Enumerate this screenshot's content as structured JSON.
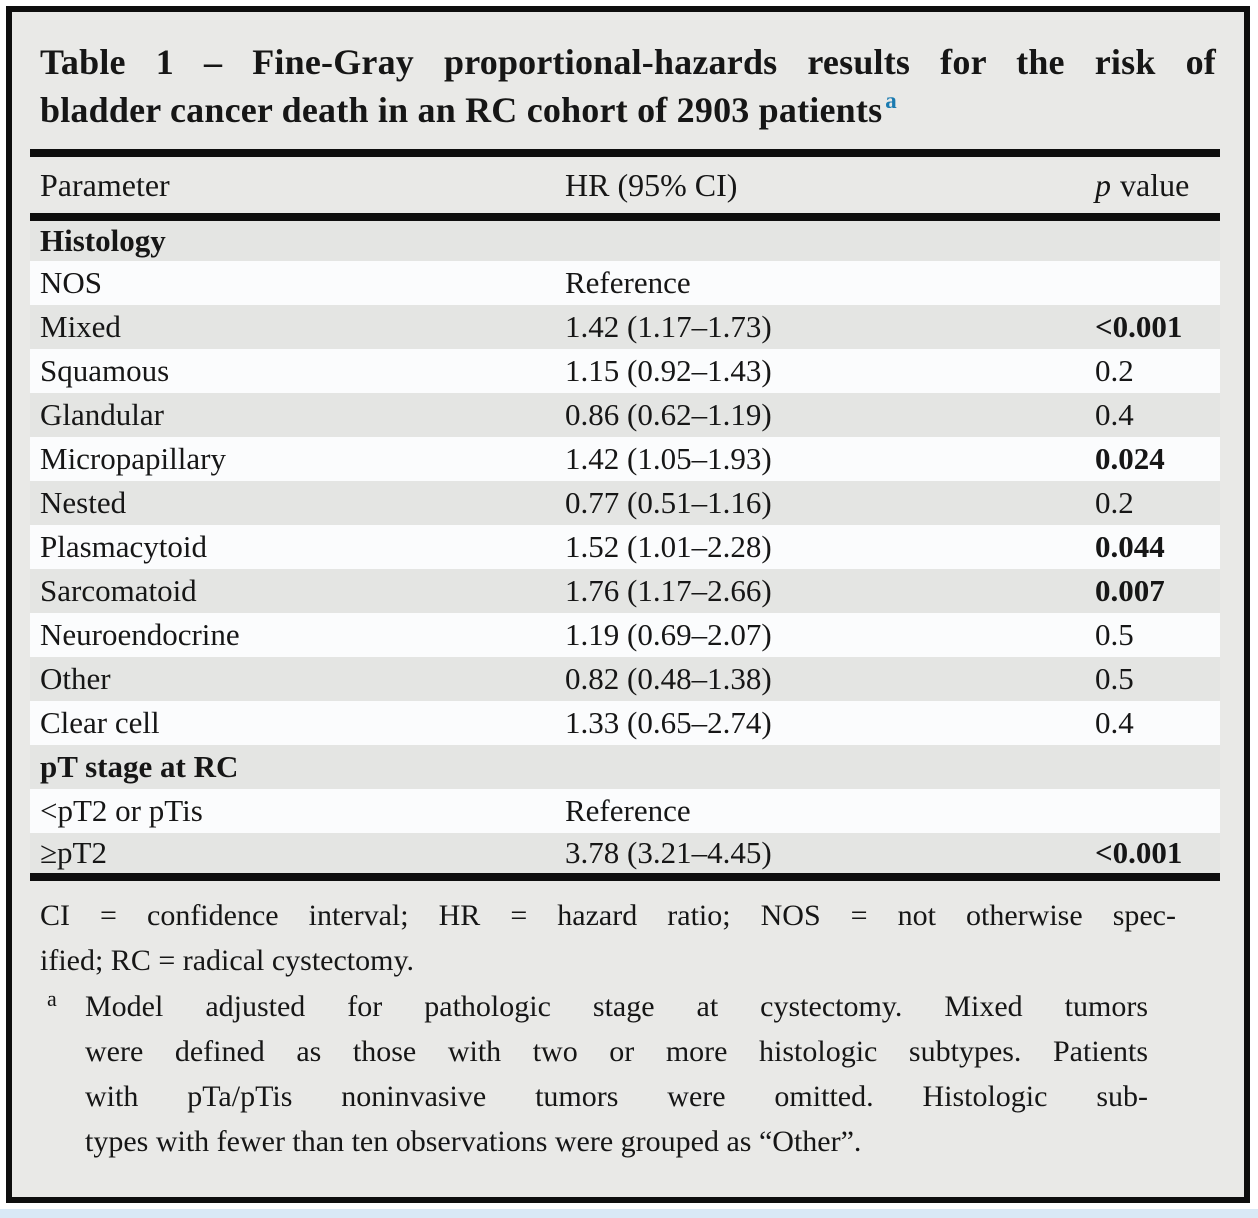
{
  "title": {
    "line1": "Table 1 – Fine-Gray proportional-hazards results for the risk of",
    "line2": "bladder cancer death in an RC cohort of 2903 patients",
    "footnote_marker": "a"
  },
  "table": {
    "columns": {
      "parameter": "Parameter",
      "hr": "HR (95% CI)",
      "p_italic": "p",
      "p_rest": "value"
    },
    "rows": [
      {
        "label": "Histology",
        "hr": "",
        "p": "",
        "section": true
      },
      {
        "label": "NOS",
        "hr": "Reference",
        "p": ""
      },
      {
        "label": "Mixed",
        "hr": "1.42 (1.17–1.73)",
        "p": "<0.001",
        "p_bold": true
      },
      {
        "label": "Squamous",
        "hr": "1.15 (0.92–1.43)",
        "p": "0.2"
      },
      {
        "label": "Glandular",
        "hr": "0.86 (0.62–1.19)",
        "p": "0.4"
      },
      {
        "label": "Micropapillary",
        "hr": "1.42 (1.05–1.93)",
        "p": "0.024",
        "p_bold": true
      },
      {
        "label": "Nested",
        "hr": "0.77 (0.51–1.16)",
        "p": "0.2"
      },
      {
        "label": "Plasmacytoid",
        "hr": "1.52 (1.01–2.28)",
        "p": "0.044",
        "p_bold": true
      },
      {
        "label": "Sarcomatoid",
        "hr": "1.76 (1.17–2.66)",
        "p": "0.007",
        "p_bold": true
      },
      {
        "label": "Neuroendocrine",
        "hr": "1.19 (0.69–2.07)",
        "p": "0.5"
      },
      {
        "label": "Other",
        "hr": "0.82 (0.48–1.38)",
        "p": "0.5"
      },
      {
        "label": "Clear cell",
        "hr": "1.33 (0.65–2.74)",
        "p": "0.4"
      },
      {
        "label": "pT stage at RC",
        "hr": "",
        "p": "",
        "section": true
      },
      {
        "label": "<pT2 or pTis",
        "hr": "Reference",
        "p": ""
      },
      {
        "label": "≥pT2",
        "hr": "3.78 (3.21–4.45)",
        "p": "<0.001",
        "p_bold": true
      }
    ]
  },
  "footnotes": {
    "abbrev": [
      "CI = confidence interval; HR = hazard ratio; NOS = not otherwise spec-",
      "ified; RC = radical cystectomy."
    ],
    "note_a_marker": "a",
    "note_a": [
      "Model adjusted for pathologic stage at cystectomy. Mixed tumors",
      "were defined as those with two or more histologic subtypes. Patients",
      "with pTa/pTis noninvasive tumors were omitted. Histologic sub-",
      "types with fewer than ten observations were grouped as “Other”."
    ]
  },
  "colors": {
    "frame_border": "#0e0e0e",
    "panel_bg": "#e9e9e7",
    "stripe_white": "#fbfcfd",
    "stripe_gray": "#e4e5e3",
    "rule_black": "#0e0e0e",
    "text": "#161616",
    "superscript_blue": "#1a7ab0",
    "bottom_strip": "#d9e9f6"
  }
}
